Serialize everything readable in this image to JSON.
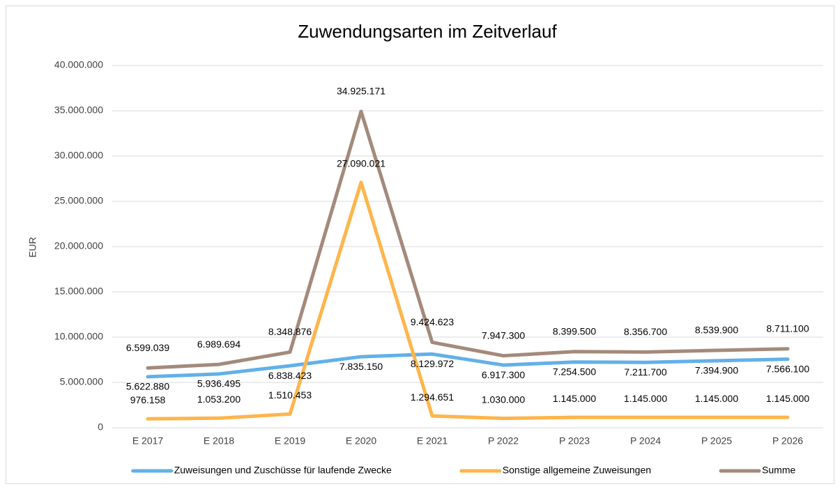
{
  "chart_data": {
    "type": "line",
    "title": "Zuwendungsarten im Zeitverlauf",
    "y_label": "EUR",
    "categories": [
      "E 2017",
      "E 2018",
      "E 2019",
      "E 2020",
      "E 2021",
      "P 2022",
      "P 2023",
      "P 2024",
      "P 2025",
      "P 2026"
    ],
    "series": [
      {
        "name": "Zuweisungen und Zuschüsse für laufende Zwecke",
        "color": "#62b0e8",
        "values": [
          5622880,
          5936495,
          6838423,
          7835150,
          8129972,
          6917300,
          7254500,
          7211700,
          7394900,
          7566100
        ],
        "value_labels": [
          "5.622.880",
          "5.936.495",
          "6.838.423",
          "7.835.150",
          "8.129.972",
          "6.917.300",
          "7.254.500",
          "7.211.700",
          "7.394.900",
          "7.566.100"
        ]
      },
      {
        "name": "Sonstige allgemeine Zuweisungen",
        "color": "#fdb54c",
        "values": [
          976158,
          1053200,
          1510453,
          27090021,
          1294651,
          1030000,
          1145000,
          1145000,
          1145000,
          1145000
        ],
        "value_labels": [
          "976.158",
          "1.053.200",
          "1.510.453",
          "27.090.021",
          "1.294.651",
          "1.030.000",
          "1.145.000",
          "1.145.000",
          "1.145.000",
          "1.145.000"
        ]
      },
      {
        "name": "Summe",
        "color": "#a38a7b",
        "values": [
          6599039,
          6989694,
          8348876,
          34925171,
          9424623,
          7947300,
          8399500,
          8356700,
          8539900,
          8711100
        ],
        "value_labels": [
          "6.599.039",
          "6.989.694",
          "8.348.876",
          "34.925.171",
          "9.424.623",
          "7.947.300",
          "8.399.500",
          "8.356.700",
          "8.539.900",
          "8.711.100"
        ]
      }
    ],
    "ylim": [
      0,
      40000000
    ],
    "yticks": [
      0,
      {
        "value": 5000000,
        "label": "5.000.000"
      },
      {
        "value": 10000000,
        "label": "10.000.000"
      },
      {
        "value": 15000000,
        "label": "15.000.000"
      },
      {
        "value": 20000000,
        "label": "20.000.000"
      },
      {
        "value": 25000000,
        "label": "25.000.000"
      },
      {
        "value": 30000000,
        "label": "30.000.000"
      },
      {
        "value": 35000000,
        "label": "35.000.000"
      },
      {
        "value": 40000000,
        "label": "40.000.000"
      }
    ],
    "grid": true,
    "legend": "bottom"
  }
}
